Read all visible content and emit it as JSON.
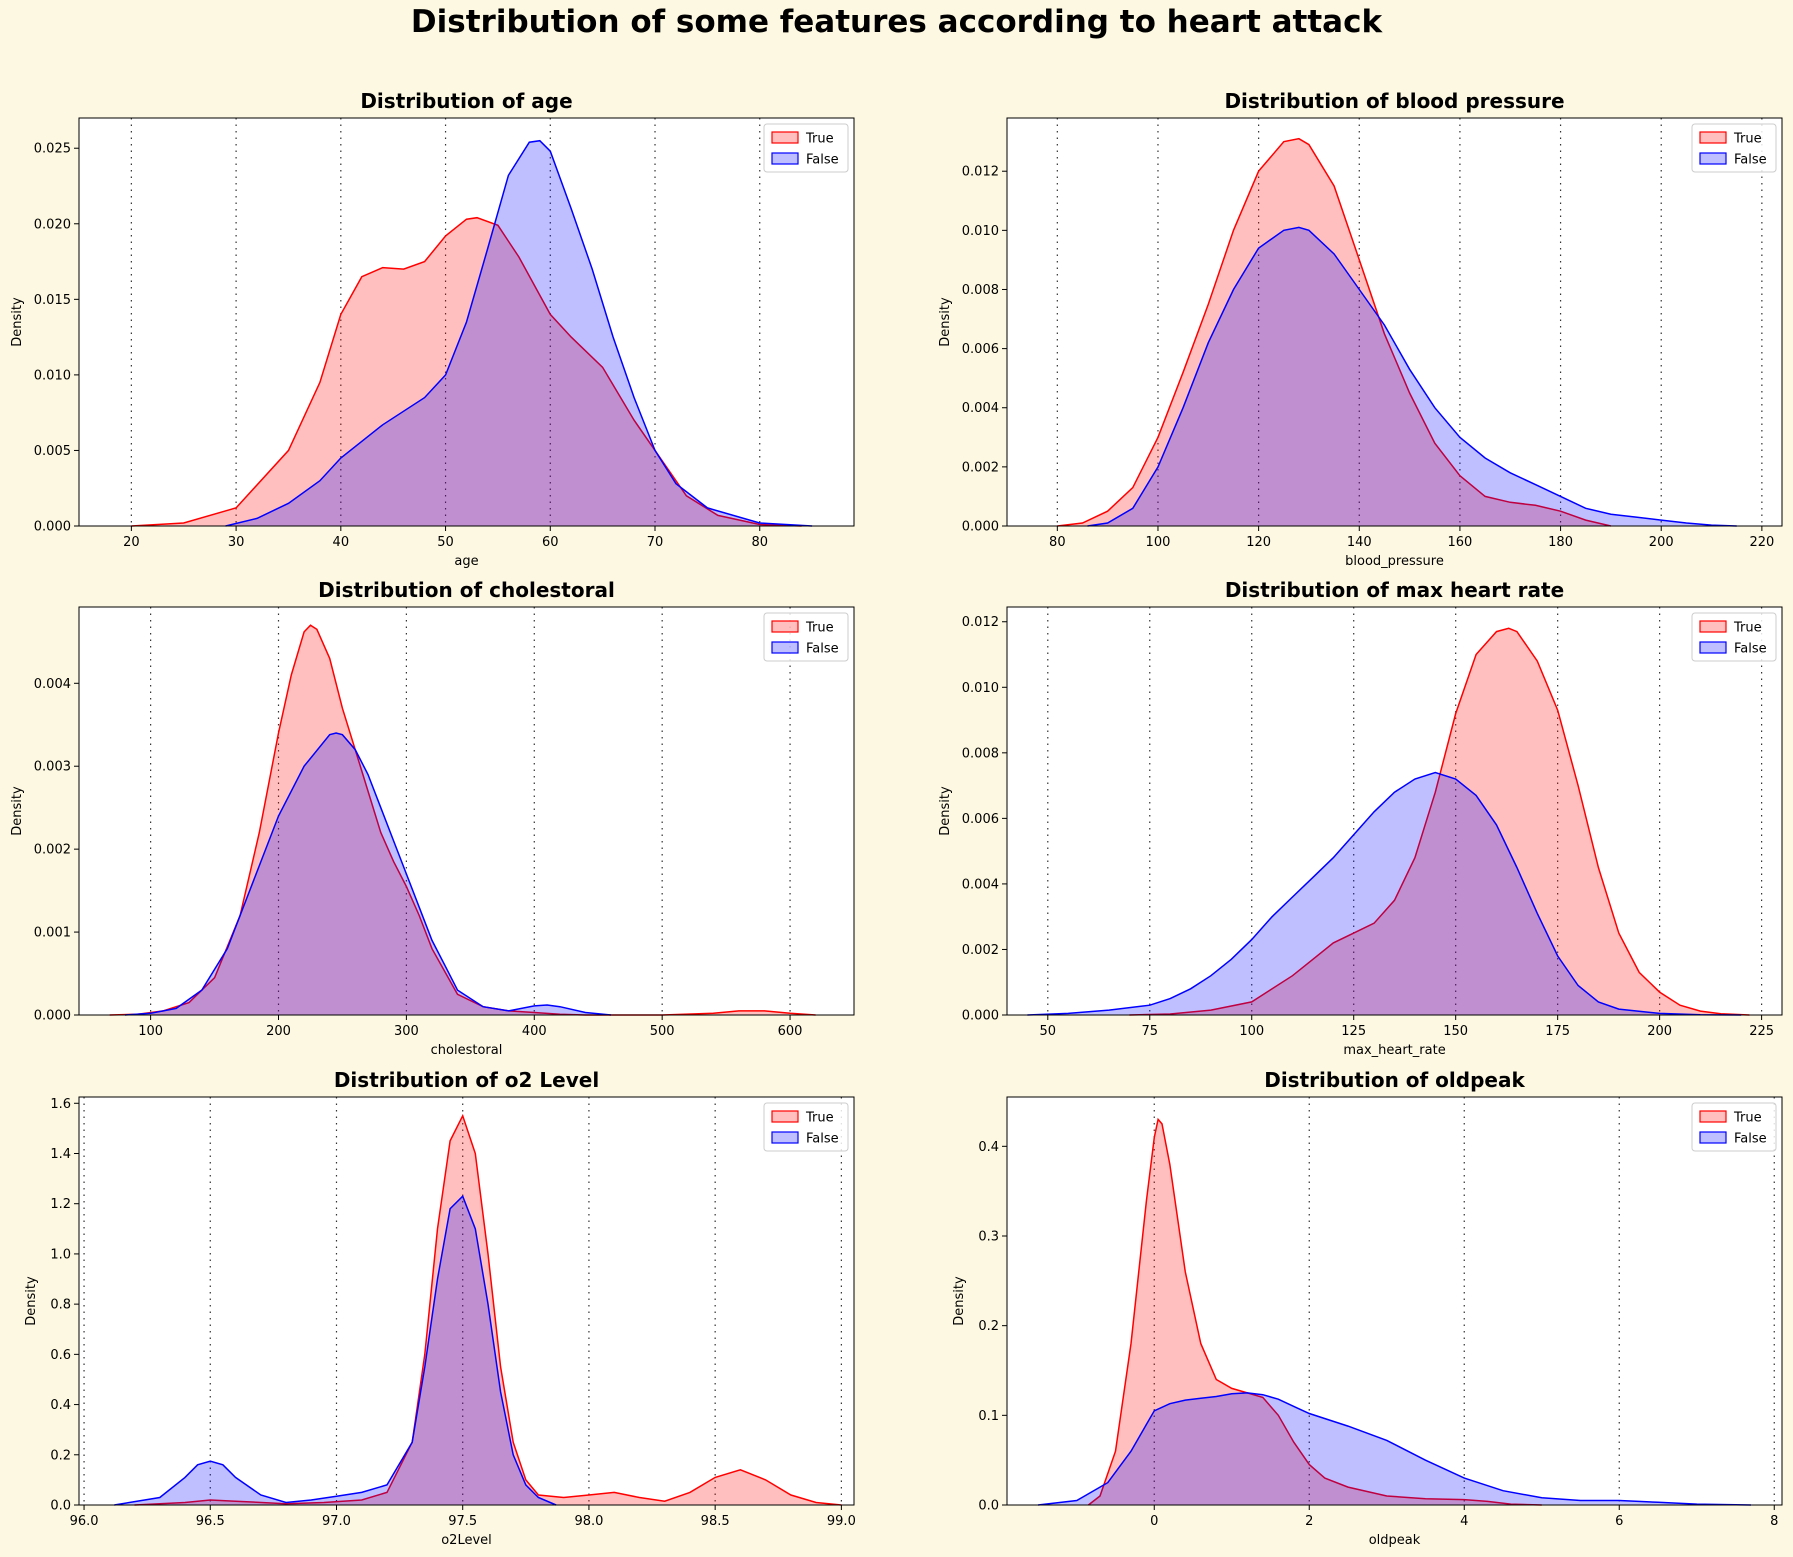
{
  "figure": {
    "title": "Distribution of some features according to heart attack",
    "background": "#fdf8e1"
  },
  "legend": {
    "entries": [
      "True",
      "False"
    ],
    "placement": "top-right"
  },
  "colors": {
    "True": "#ff0000",
    "False": "#0000ff",
    "True_fill": "rgba(255,0,0,0.25)",
    "False_fill": "rgba(0,0,255,0.25)"
  },
  "chart_data": [
    {
      "type": "area",
      "title": "Distribution of age",
      "xlabel": "age",
      "ylabel": "Density",
      "xlim": [
        15,
        89
      ],
      "ylim": [
        0,
        0.027
      ],
      "xticks": [
        20,
        30,
        40,
        50,
        60,
        70,
        80
      ],
      "xtick_labels": [
        "20",
        "30",
        "40",
        "50",
        "60",
        "70",
        "80"
      ],
      "yticks": [
        0,
        0.005,
        0.01,
        0.015,
        0.02,
        0.025
      ],
      "ytick_labels": [
        "0.000",
        "0.005",
        "0.010",
        "0.015",
        "0.020",
        "0.025"
      ],
      "vlines": [
        20,
        30,
        40,
        50,
        60,
        70,
        80
      ],
      "series": [
        {
          "name": "True",
          "x": [
            20,
            25,
            30,
            35,
            38,
            40,
            42,
            44,
            46,
            48,
            50,
            52,
            53,
            55,
            57,
            60,
            62,
            65,
            68,
            70,
            73,
            76,
            80,
            84
          ],
          "y": [
            0,
            0.0002,
            0.0012,
            0.005,
            0.0095,
            0.014,
            0.0165,
            0.0171,
            0.017,
            0.0175,
            0.0192,
            0.0203,
            0.0204,
            0.0199,
            0.0178,
            0.014,
            0.0125,
            0.0105,
            0.007,
            0.005,
            0.002,
            0.0007,
            0.0001,
            0
          ]
        },
        {
          "name": "False",
          "x": [
            29,
            32,
            35,
            38,
            40,
            44,
            48,
            50,
            52,
            54,
            56,
            58,
            59,
            60,
            62,
            64,
            66,
            68,
            70,
            72,
            75,
            80,
            85
          ],
          "y": [
            0,
            0.0005,
            0.0015,
            0.003,
            0.0045,
            0.0067,
            0.0085,
            0.01,
            0.0135,
            0.0183,
            0.0232,
            0.0254,
            0.0255,
            0.0248,
            0.021,
            0.017,
            0.0125,
            0.0085,
            0.005,
            0.0028,
            0.0012,
            0.0002,
            0
          ]
        }
      ]
    },
    {
      "type": "area",
      "title": "Distribution of blood pressure",
      "xlabel": "blood_pressure",
      "ylabel": "Density",
      "xlim": [
        70,
        224
      ],
      "ylim": [
        0,
        0.0138
      ],
      "xticks": [
        80,
        100,
        120,
        140,
        160,
        180,
        200,
        220
      ],
      "xtick_labels": [
        "80",
        "100",
        "120",
        "140",
        "160",
        "180",
        "200",
        "220"
      ],
      "yticks": [
        0,
        0.002,
        0.004,
        0.006,
        0.008,
        0.01,
        0.012
      ],
      "ytick_labels": [
        "0.000",
        "0.002",
        "0.004",
        "0.006",
        "0.008",
        "0.010",
        "0.012"
      ],
      "vlines": [
        80,
        100,
        120,
        140,
        160,
        180,
        200,
        220
      ],
      "series": [
        {
          "name": "True",
          "x": [
            80,
            85,
            90,
            95,
            100,
            105,
            110,
            115,
            120,
            125,
            128,
            130,
            135,
            140,
            145,
            150,
            155,
            160,
            165,
            170,
            175,
            180,
            185,
            190
          ],
          "y": [
            0,
            0.0001,
            0.0005,
            0.0013,
            0.003,
            0.0052,
            0.0075,
            0.01,
            0.012,
            0.013,
            0.0131,
            0.0129,
            0.0115,
            0.009,
            0.0065,
            0.0045,
            0.0028,
            0.0017,
            0.001,
            0.0008,
            0.0007,
            0.0005,
            0.0002,
            0
          ]
        },
        {
          "name": "False",
          "x": [
            86,
            90,
            95,
            100,
            105,
            110,
            115,
            120,
            125,
            128,
            130,
            135,
            140,
            145,
            150,
            155,
            160,
            165,
            170,
            175,
            180,
            185,
            190,
            195,
            200,
            205,
            210,
            215
          ],
          "y": [
            0,
            0.0001,
            0.0006,
            0.002,
            0.004,
            0.0062,
            0.008,
            0.0094,
            0.01,
            0.0101,
            0.01,
            0.0092,
            0.008,
            0.0068,
            0.0053,
            0.004,
            0.003,
            0.0023,
            0.0018,
            0.0014,
            0.001,
            0.0006,
            0.0004,
            0.0003,
            0.0002,
            0.0001,
            3e-05,
            0
          ]
        }
      ]
    },
    {
      "type": "area",
      "title": "Distribution of cholestoral",
      "xlabel": "cholestoral",
      "ylabel": "Density",
      "xlim": [
        44,
        650
      ],
      "ylim": [
        0,
        0.00492
      ],
      "xticks": [
        100,
        200,
        300,
        400,
        500,
        600
      ],
      "xtick_labels": [
        "100",
        "200",
        "300",
        "400",
        "500",
        "600"
      ],
      "yticks": [
        0,
        0.001,
        0.002,
        0.003,
        0.004
      ],
      "ytick_labels": [
        "0.000",
        "0.001",
        "0.002",
        "0.003",
        "0.004"
      ],
      "vlines": [
        100,
        200,
        300,
        400,
        500,
        600
      ],
      "series": [
        {
          "name": "True",
          "x": [
            68,
            90,
            110,
            130,
            150,
            170,
            185,
            200,
            210,
            220,
            225,
            230,
            240,
            250,
            260,
            270,
            280,
            290,
            300,
            310,
            320,
            340,
            360,
            380,
            400,
            420,
            440,
            460,
            500,
            540,
            560,
            580,
            600,
            620
          ],
          "y": [
            0,
            1e-05,
            5e-05,
            0.00015,
            0.00045,
            0.0012,
            0.0022,
            0.0034,
            0.0041,
            0.00462,
            0.0047,
            0.00465,
            0.0043,
            0.0037,
            0.0032,
            0.0027,
            0.0022,
            0.00185,
            0.00155,
            0.0012,
            0.0008,
            0.00025,
            0.0001,
            5e-05,
            3e-05,
            1e-05,
            0,
            0,
            0,
            2e-05,
            5e-05,
            5e-05,
            2e-05,
            0
          ]
        },
        {
          "name": "False",
          "x": [
            80,
            100,
            120,
            140,
            160,
            180,
            200,
            220,
            240,
            245,
            250,
            260,
            270,
            280,
            290,
            300,
            310,
            320,
            330,
            340,
            360,
            380,
            400,
            410,
            420,
            440,
            460
          ],
          "y": [
            0,
            2e-05,
            8e-05,
            0.0003,
            0.0008,
            0.0016,
            0.0024,
            0.003,
            0.00338,
            0.0034,
            0.00338,
            0.0032,
            0.0029,
            0.0025,
            0.0021,
            0.0017,
            0.0013,
            0.0009,
            0.0006,
            0.0003,
            0.0001,
            5e-05,
            0.00011,
            0.00012,
            0.0001,
            3e-05,
            0
          ]
        }
      ]
    },
    {
      "type": "area",
      "title": "Distribution of max heart rate",
      "xlabel": "max_heart_rate",
      "ylabel": "Density",
      "xlim": [
        40,
        230
      ],
      "ylim": [
        0,
        0.01245
      ],
      "xticks": [
        50,
        75,
        100,
        125,
        150,
        175,
        200,
        225
      ],
      "xtick_labels": [
        "50",
        "75",
        "100",
        "125",
        "150",
        "175",
        "200",
        "225"
      ],
      "yticks": [
        0,
        0.002,
        0.004,
        0.006,
        0.008,
        0.01,
        0.012
      ],
      "ytick_labels": [
        "0.000",
        "0.002",
        "0.004",
        "0.006",
        "0.008",
        "0.010",
        "0.012"
      ],
      "vlines": [
        50,
        75,
        100,
        125,
        150,
        175,
        200,
        225
      ],
      "series": [
        {
          "name": "True",
          "x": [
            70,
            80,
            90,
            100,
            110,
            115,
            120,
            125,
            130,
            135,
            140,
            145,
            150,
            155,
            160,
            163,
            165,
            170,
            175,
            180,
            185,
            190,
            195,
            200,
            205,
            210,
            215,
            222
          ],
          "y": [
            0,
            3e-05,
            0.00015,
            0.0004,
            0.0012,
            0.0017,
            0.0022,
            0.0025,
            0.0028,
            0.0035,
            0.0048,
            0.0068,
            0.0092,
            0.011,
            0.0117,
            0.0118,
            0.0117,
            0.0108,
            0.0093,
            0.007,
            0.0045,
            0.0025,
            0.0013,
            0.0007,
            0.0003,
            0.00012,
            4e-05,
            0
          ]
        },
        {
          "name": "False",
          "x": [
            45,
            55,
            65,
            75,
            80,
            85,
            90,
            95,
            100,
            105,
            110,
            115,
            120,
            125,
            130,
            135,
            140,
            145,
            150,
            155,
            160,
            165,
            170,
            175,
            180,
            185,
            190,
            200,
            210,
            220
          ],
          "y": [
            0,
            5e-05,
            0.00015,
            0.0003,
            0.0005,
            0.0008,
            0.0012,
            0.0017,
            0.0023,
            0.003,
            0.0036,
            0.0042,
            0.0048,
            0.0055,
            0.0062,
            0.0068,
            0.0072,
            0.0074,
            0.0072,
            0.0067,
            0.0058,
            0.0045,
            0.0031,
            0.0018,
            0.0009,
            0.0004,
            0.00018,
            5e-05,
            1e-05,
            0
          ]
        }
      ]
    },
    {
      "type": "area",
      "title": "Distribution of o2 Level",
      "xlabel": "o2Level",
      "ylabel": "Density",
      "xlim": [
        95.98,
        99.05
      ],
      "ylim": [
        0,
        1.625
      ],
      "xticks": [
        96.0,
        96.5,
        97.0,
        97.5,
        98.0,
        98.5,
        99.0
      ],
      "xtick_labels": [
        "96.0",
        "96.5",
        "97.0",
        "97.5",
        "98.0",
        "98.5",
        "99.0"
      ],
      "yticks": [
        0,
        0.2,
        0.4,
        0.6,
        0.8,
        1.0,
        1.2,
        1.4,
        1.6
      ],
      "ytick_labels": [
        "0.0",
        "0.2",
        "0.4",
        "0.6",
        "0.8",
        "1.0",
        "1.2",
        "1.4",
        "1.6"
      ],
      "vlines": [
        96.0,
        96.5,
        97.0,
        97.5,
        98.0,
        98.5,
        99.0
      ],
      "series": [
        {
          "name": "True",
          "x": [
            96.2,
            96.4,
            96.5,
            96.6,
            96.8,
            96.95,
            97.1,
            97.2,
            97.3,
            97.35,
            97.4,
            97.45,
            97.5,
            97.55,
            97.6,
            97.65,
            97.7,
            97.75,
            97.8,
            97.9,
            98.0,
            98.1,
            98.2,
            98.3,
            98.4,
            98.5,
            98.6,
            98.7,
            98.8,
            98.9,
            99.0
          ],
          "y": [
            0,
            0.01,
            0.02,
            0.015,
            0.005,
            0.01,
            0.02,
            0.05,
            0.25,
            0.6,
            1.1,
            1.45,
            1.55,
            1.4,
            1.0,
            0.55,
            0.25,
            0.1,
            0.04,
            0.03,
            0.04,
            0.05,
            0.03,
            0.015,
            0.05,
            0.11,
            0.14,
            0.1,
            0.04,
            0.01,
            0
          ]
        },
        {
          "name": "False",
          "x": [
            96.12,
            96.3,
            96.4,
            96.45,
            96.5,
            96.55,
            96.6,
            96.7,
            96.8,
            96.9,
            97.0,
            97.1,
            97.2,
            97.3,
            97.35,
            97.4,
            97.45,
            97.5,
            97.55,
            97.6,
            97.65,
            97.7,
            97.75,
            97.8,
            97.87
          ],
          "y": [
            0,
            0.03,
            0.11,
            0.16,
            0.175,
            0.16,
            0.11,
            0.04,
            0.01,
            0.02,
            0.035,
            0.05,
            0.08,
            0.25,
            0.55,
            0.9,
            1.18,
            1.23,
            1.1,
            0.8,
            0.45,
            0.2,
            0.08,
            0.03,
            0
          ]
        }
      ]
    },
    {
      "type": "area",
      "title": "Distribution of oldpeak",
      "xlabel": "oldpeak",
      "ylabel": "Density",
      "xlim": [
        -1.9,
        8.1
      ],
      "ylim": [
        0,
        0.455
      ],
      "xticks": [
        0,
        2,
        4,
        6,
        8
      ],
      "xtick_labels": [
        "0",
        "2",
        "4",
        "6",
        "8"
      ],
      "yticks": [
        0,
        0.1,
        0.2,
        0.3,
        0.4
      ],
      "ytick_labels": [
        "0.0",
        "0.1",
        "0.2",
        "0.3",
        "0.4"
      ],
      "vlines": [
        0,
        2,
        4,
        6,
        8
      ],
      "series": [
        {
          "name": "True",
          "x": [
            -0.85,
            -0.7,
            -0.5,
            -0.3,
            -0.1,
            0,
            0.05,
            0.1,
            0.2,
            0.4,
            0.6,
            0.8,
            1.0,
            1.2,
            1.4,
            1.6,
            1.8,
            2.0,
            2.2,
            2.5,
            3.0,
            3.5,
            4.0,
            4.3,
            4.6,
            5.0
          ],
          "y": [
            0,
            0.01,
            0.06,
            0.18,
            0.34,
            0.41,
            0.43,
            0.425,
            0.38,
            0.26,
            0.18,
            0.14,
            0.13,
            0.125,
            0.12,
            0.1,
            0.07,
            0.045,
            0.03,
            0.02,
            0.01,
            0.007,
            0.006,
            0.004,
            0.001,
            0
          ]
        },
        {
          "name": "False",
          "x": [
            -1.5,
            -1.0,
            -0.6,
            -0.3,
            -0.1,
            0,
            0.2,
            0.4,
            0.6,
            0.8,
            1.0,
            1.2,
            1.4,
            1.6,
            1.8,
            2.0,
            2.5,
            3.0,
            3.5,
            4.0,
            4.5,
            5.0,
            5.5,
            6.0,
            6.5,
            7.0,
            7.7
          ],
          "y": [
            0,
            0.005,
            0.025,
            0.06,
            0.09,
            0.105,
            0.113,
            0.117,
            0.119,
            0.121,
            0.124,
            0.125,
            0.123,
            0.118,
            0.11,
            0.102,
            0.088,
            0.072,
            0.05,
            0.03,
            0.016,
            0.008,
            0.005,
            0.005,
            0.003,
            0.001,
            0
          ]
        }
      ]
    }
  ]
}
